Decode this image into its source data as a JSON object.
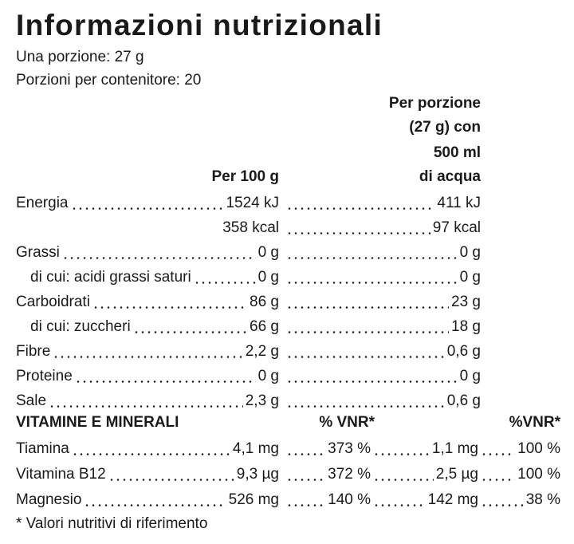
{
  "title": "Informazioni nutrizionali",
  "serving_size": "Una porzione: 27 g",
  "servings_per_container": "Porzioni per contenitore: 20",
  "columns": {
    "per_100g": "Per 100 g",
    "per_serving": [
      "Per porzione",
      "(27 g) con",
      "500 ml",
      "di acqua"
    ]
  },
  "nutrients": [
    {
      "label": "Energia",
      "per_100g": "1524 kJ",
      "per_serving": "411 kJ"
    },
    {
      "per_100g": "358 kcal",
      "per_serving": "97 kcal"
    },
    {
      "label": "Grassi",
      "per_100g": "0 g",
      "per_serving": "0 g"
    },
    {
      "label": "di cui: acidi grassi saturi",
      "per_100g": "0 g",
      "per_serving": "0 g"
    },
    {
      "label": "Carboidrati",
      "per_100g": "86 g",
      "per_serving": "23 g"
    },
    {
      "label": "di cui: zuccheri",
      "per_100g": "66 g",
      "per_serving": "18 g"
    },
    {
      "label": "Fibre",
      "per_100g": "2,2 g",
      "per_serving": "0,6 g"
    },
    {
      "label": "Proteine",
      "per_100g": "0 g",
      "per_serving": "0 g"
    },
    {
      "label": "Sale",
      "per_100g": "2,3 g",
      "per_serving": "0,6 g"
    }
  ],
  "vitamins": {
    "header": {
      "title": "VITAMINE E MINERALI",
      "vnr_100g": "% VNR*",
      "vnr_serving": "%VNR*"
    },
    "rows": [
      {
        "label": "Tiamina",
        "per_100g": "4,1 mg",
        "vnr_100g": "373 %",
        "per_serving": "1,1 mg",
        "vnr_serving": "100 %"
      },
      {
        "label": "Vitamina B12",
        "per_100g": "9,3 µg",
        "vnr_100g": "372 %",
        "per_serving": "2,5 µg",
        "vnr_serving": "100 %"
      },
      {
        "label": "Magnesio",
        "per_100g": "526 mg",
        "vnr_100g": "140 %",
        "per_serving": "142 mg",
        "vnr_serving": "38 %"
      }
    ]
  },
  "footnote": "* Valori nutritivi di riferimento"
}
